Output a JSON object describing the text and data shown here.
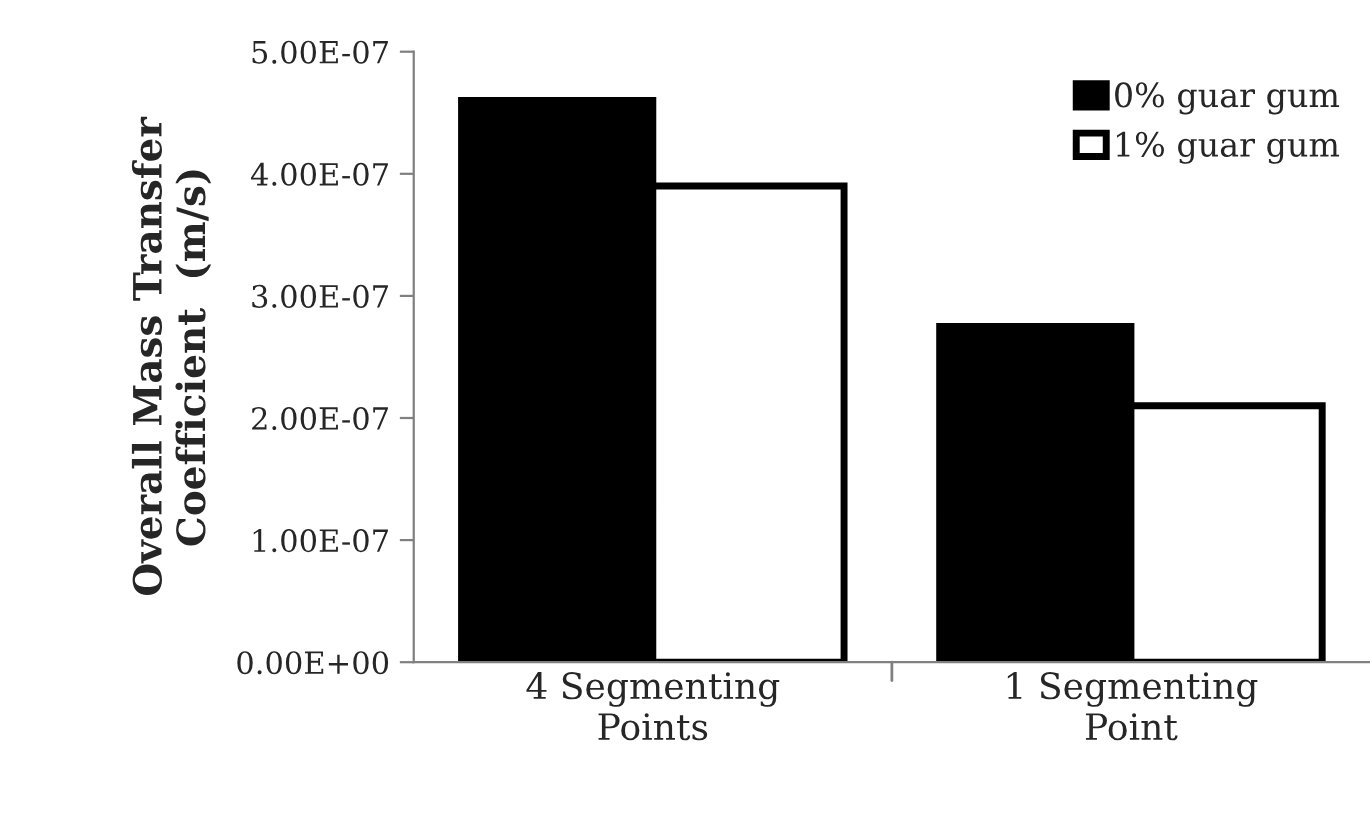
{
  "chart_data": {
    "type": "bar",
    "ylabel": "Overall Mass Transfer\nCoefficient  (m/s)",
    "categories": [
      "4 Segmenting\nPoints",
      "1 Segmenting\nPoint"
    ],
    "series": [
      {
        "name": "0% guar gum",
        "color": "#000000",
        "values": [
          4.6e-07,
          2.75e-07
        ]
      },
      {
        "name": "1% guar gum",
        "color": "#ffffff",
        "values": [
          3.9e-07,
          2.1e-07
        ]
      }
    ],
    "ylim": [
      0,
      5e-07
    ],
    "yticks": [
      {
        "value": 0,
        "label": "0.00E+00"
      },
      {
        "value": 1e-07,
        "label": "1.00E-07"
      },
      {
        "value": 2e-07,
        "label": "2.00E-07"
      },
      {
        "value": 3e-07,
        "label": "3.00E-07"
      },
      {
        "value": 4e-07,
        "label": "4.00E-07"
      },
      {
        "value": 5e-07,
        "label": "5.00E-07"
      }
    ],
    "grid": false,
    "legend": "top right"
  }
}
